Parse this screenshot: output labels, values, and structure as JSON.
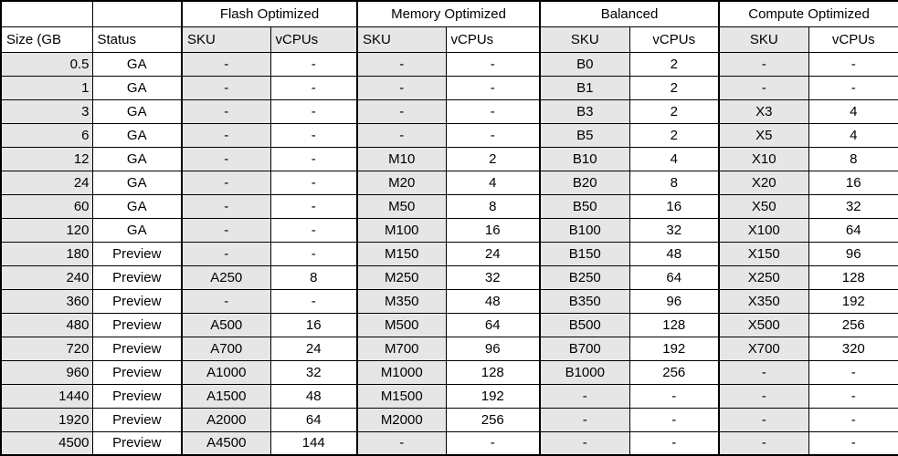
{
  "table": {
    "groups": [
      {
        "label": "Flash Optimized"
      },
      {
        "label": "Memory Optimized"
      },
      {
        "label": "Balanced"
      },
      {
        "label": "Compute Optimized"
      }
    ],
    "headers": {
      "size": "Size (GB",
      "status": "Status",
      "sku": "SKU",
      "vcpus": "vCPUs"
    },
    "rows": [
      {
        "size": "0.5",
        "status": "GA",
        "flash_sku": "-",
        "flash_vcpus": "-",
        "memory_sku": "-",
        "memory_vcpus": "-",
        "balanced_sku": "B0",
        "balanced_vcpus": "2",
        "compute_sku": "-",
        "compute_vcpus": "-"
      },
      {
        "size": "1",
        "status": "GA",
        "flash_sku": "-",
        "flash_vcpus": "-",
        "memory_sku": "-",
        "memory_vcpus": "-",
        "balanced_sku": "B1",
        "balanced_vcpus": "2",
        "compute_sku": "-",
        "compute_vcpus": "-"
      },
      {
        "size": "3",
        "status": "GA",
        "flash_sku": "-",
        "flash_vcpus": "-",
        "memory_sku": "-",
        "memory_vcpus": "-",
        "balanced_sku": "B3",
        "balanced_vcpus": "2",
        "compute_sku": "X3",
        "compute_vcpus": "4"
      },
      {
        "size": "6",
        "status": "GA",
        "flash_sku": "-",
        "flash_vcpus": "-",
        "memory_sku": "-",
        "memory_vcpus": "-",
        "balanced_sku": "B5",
        "balanced_vcpus": "2",
        "compute_sku": "X5",
        "compute_vcpus": "4"
      },
      {
        "size": "12",
        "status": "GA",
        "flash_sku": "-",
        "flash_vcpus": "-",
        "memory_sku": "M10",
        "memory_vcpus": "2",
        "balanced_sku": "B10",
        "balanced_vcpus": "4",
        "compute_sku": "X10",
        "compute_vcpus": "8"
      },
      {
        "size": "24",
        "status": "GA",
        "flash_sku": "-",
        "flash_vcpus": "-",
        "memory_sku": "M20",
        "memory_vcpus": "4",
        "balanced_sku": "B20",
        "balanced_vcpus": "8",
        "compute_sku": "X20",
        "compute_vcpus": "16"
      },
      {
        "size": "60",
        "status": "GA",
        "flash_sku": "-",
        "flash_vcpus": "-",
        "memory_sku": "M50",
        "memory_vcpus": "8",
        "balanced_sku": "B50",
        "balanced_vcpus": "16",
        "compute_sku": "X50",
        "compute_vcpus": "32"
      },
      {
        "size": "120",
        "status": "GA",
        "flash_sku": "-",
        "flash_vcpus": "-",
        "memory_sku": "M100",
        "memory_vcpus": "16",
        "balanced_sku": "B100",
        "balanced_vcpus": "32",
        "compute_sku": "X100",
        "compute_vcpus": "64"
      },
      {
        "size": "180",
        "status": "Preview",
        "flash_sku": "-",
        "flash_vcpus": "-",
        "memory_sku": "M150",
        "memory_vcpus": "24",
        "balanced_sku": "B150",
        "balanced_vcpus": "48",
        "compute_sku": "X150",
        "compute_vcpus": "96"
      },
      {
        "size": "240",
        "status": "Preview",
        "flash_sku": "A250",
        "flash_vcpus": "8",
        "memory_sku": "M250",
        "memory_vcpus": "32",
        "balanced_sku": "B250",
        "balanced_vcpus": "64",
        "compute_sku": "X250",
        "compute_vcpus": "128"
      },
      {
        "size": "360",
        "status": "Preview",
        "flash_sku": "-",
        "flash_vcpus": "-",
        "memory_sku": "M350",
        "memory_vcpus": "48",
        "balanced_sku": "B350",
        "balanced_vcpus": "96",
        "compute_sku": "X350",
        "compute_vcpus": "192"
      },
      {
        "size": "480",
        "status": "Preview",
        "flash_sku": "A500",
        "flash_vcpus": "16",
        "memory_sku": "M500",
        "memory_vcpus": "64",
        "balanced_sku": "B500",
        "balanced_vcpus": "128",
        "compute_sku": "X500",
        "compute_vcpus": "256"
      },
      {
        "size": "720",
        "status": "Preview",
        "flash_sku": "A700",
        "flash_vcpus": "24",
        "memory_sku": "M700",
        "memory_vcpus": "96",
        "balanced_sku": "B700",
        "balanced_vcpus": "192",
        "compute_sku": "X700",
        "compute_vcpus": "320"
      },
      {
        "size": "960",
        "status": "Preview",
        "flash_sku": "A1000",
        "flash_vcpus": "32",
        "memory_sku": "M1000",
        "memory_vcpus": "128",
        "balanced_sku": "B1000",
        "balanced_vcpus": "256",
        "compute_sku": "-",
        "compute_vcpus": "-"
      },
      {
        "size": "1440",
        "status": "Preview",
        "flash_sku": "A1500",
        "flash_vcpus": "48",
        "memory_sku": "M1500",
        "memory_vcpus": "192",
        "balanced_sku": "-",
        "balanced_vcpus": "-",
        "compute_sku": "-",
        "compute_vcpus": "-"
      },
      {
        "size": "1920",
        "status": "Preview",
        "flash_sku": "A2000",
        "flash_vcpus": "64",
        "memory_sku": "M2000",
        "memory_vcpus": "256",
        "balanced_sku": "-",
        "balanced_vcpus": "-",
        "compute_sku": "-",
        "compute_vcpus": "-"
      },
      {
        "size": "4500",
        "status": "Preview",
        "flash_sku": "A4500",
        "flash_vcpus": "144",
        "memory_sku": "-",
        "memory_vcpus": "-",
        "balanced_sku": "-",
        "balanced_vcpus": "-",
        "compute_sku": "-",
        "compute_vcpus": "-"
      }
    ]
  },
  "colors": {
    "shaded_cell": "#e7e6e6",
    "cell_background": "#ffffff",
    "grid_border": "#000000",
    "text": "#000000"
  }
}
